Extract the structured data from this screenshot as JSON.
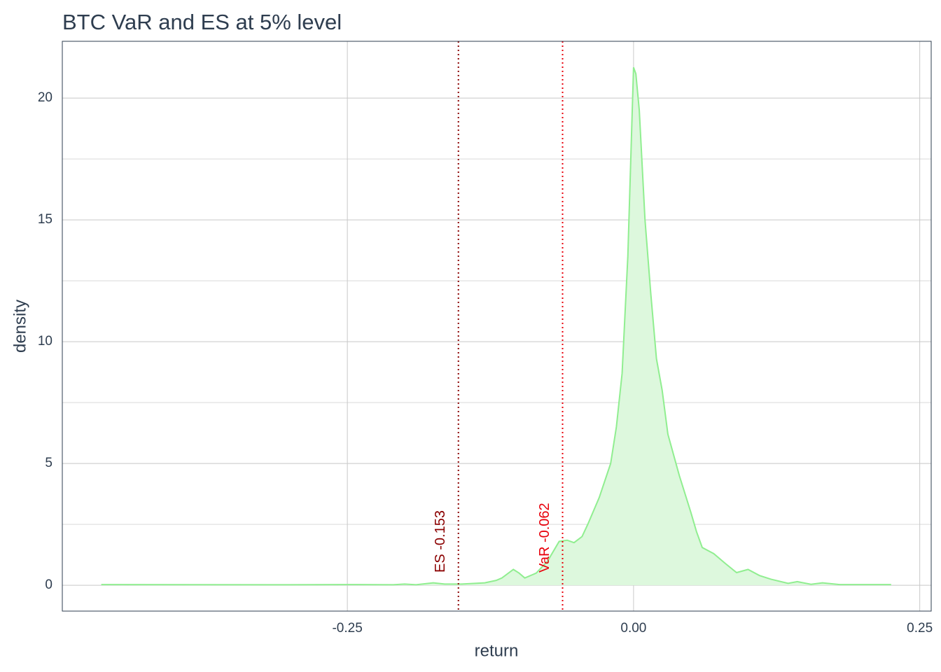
{
  "chart_data": {
    "type": "area",
    "title": "BTC VaR and ES at 5% level",
    "x_label": "return",
    "y_label": "density",
    "x": [
      -0.465,
      -0.3,
      -0.25,
      -0.21,
      -0.2,
      -0.19,
      -0.175,
      -0.165,
      -0.15,
      -0.13,
      -0.12,
      -0.115,
      -0.105,
      -0.1,
      -0.095,
      -0.085,
      -0.075,
      -0.065,
      -0.058,
      -0.052,
      -0.045,
      -0.04,
      -0.03,
      -0.02,
      -0.015,
      -0.01,
      -0.005,
      0.0,
      0.002,
      0.005,
      0.01,
      0.015,
      0.02,
      0.025,
      0.03,
      0.04,
      0.05,
      0.055,
      0.06,
      0.07,
      0.08,
      0.09,
      0.1,
      0.11,
      0.12,
      0.135,
      0.143,
      0.155,
      0.165,
      0.18,
      0.225
    ],
    "values": [
      0.03,
      0.02,
      0.03,
      0.02,
      0.05,
      0.02,
      0.1,
      0.05,
      0.05,
      0.1,
      0.2,
      0.3,
      0.65,
      0.5,
      0.3,
      0.5,
      1.0,
      1.8,
      1.85,
      1.75,
      2.0,
      2.5,
      3.6,
      5.0,
      6.5,
      8.7,
      13.5,
      21.26,
      21.0,
      19.5,
      15.0,
      12.0,
      9.3,
      8.0,
      6.2,
      4.5,
      3.0,
      2.2,
      1.55,
      1.3,
      0.9,
      0.52,
      0.65,
      0.4,
      0.25,
      0.08,
      0.15,
      0.04,
      0.1,
      0.03,
      0.03
    ],
    "line_color": "#90ee90",
    "fill_color": "#ddf8dd",
    "xlim": [
      -0.499,
      0.26
    ],
    "ylim": [
      -1.06,
      22.33
    ],
    "xticks": [
      -0.25,
      {
        "value": 0,
        "label": "0.00"
      },
      0.25
    ],
    "yticks": [
      0,
      5,
      10,
      15,
      20
    ],
    "yminorticks": [
      2.5,
      7.5,
      12.5,
      17.5
    ],
    "grid": true,
    "vlines": [
      {
        "label": "ES -0.153",
        "value": -0.153,
        "color": "#8b0000"
      },
      {
        "label": "VaR -0.062",
        "value": -0.062,
        "color": "#e8000b"
      }
    ]
  }
}
